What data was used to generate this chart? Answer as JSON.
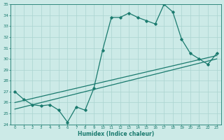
{
  "xlabel": "Humidex (Indice chaleur)",
  "xlim": [
    -0.5,
    23.5
  ],
  "ylim": [
    24,
    35
  ],
  "xticks": [
    0,
    1,
    2,
    3,
    4,
    5,
    6,
    7,
    8,
    9,
    10,
    11,
    12,
    13,
    14,
    15,
    16,
    17,
    18,
    19,
    20,
    21,
    22,
    23
  ],
  "yticks": [
    24,
    25,
    26,
    27,
    28,
    29,
    30,
    31,
    32,
    33,
    34,
    35
  ],
  "bg_color": "#cceae7",
  "grid_color": "#aad4d0",
  "line_color": "#1a7a6e",
  "main_series": {
    "x": [
      0,
      1,
      2,
      3,
      4,
      5,
      6,
      7,
      8,
      9,
      10,
      11,
      12,
      13,
      14,
      15,
      16,
      17,
      18,
      19,
      20,
      21,
      22,
      23
    ],
    "y": [
      27.0,
      26.3,
      25.8,
      25.7,
      25.8,
      25.3,
      24.2,
      25.6,
      25.3,
      27.3,
      30.8,
      33.8,
      33.8,
      34.2,
      33.8,
      33.5,
      33.2,
      35.0,
      34.3,
      31.8,
      30.5,
      30.0,
      29.5,
      30.5
    ]
  },
  "linear1": {
    "x": [
      0,
      23
    ],
    "y": [
      26.0,
      30.3
    ]
  },
  "linear2": {
    "x": [
      0,
      23
    ],
    "y": [
      25.4,
      30.0
    ]
  }
}
